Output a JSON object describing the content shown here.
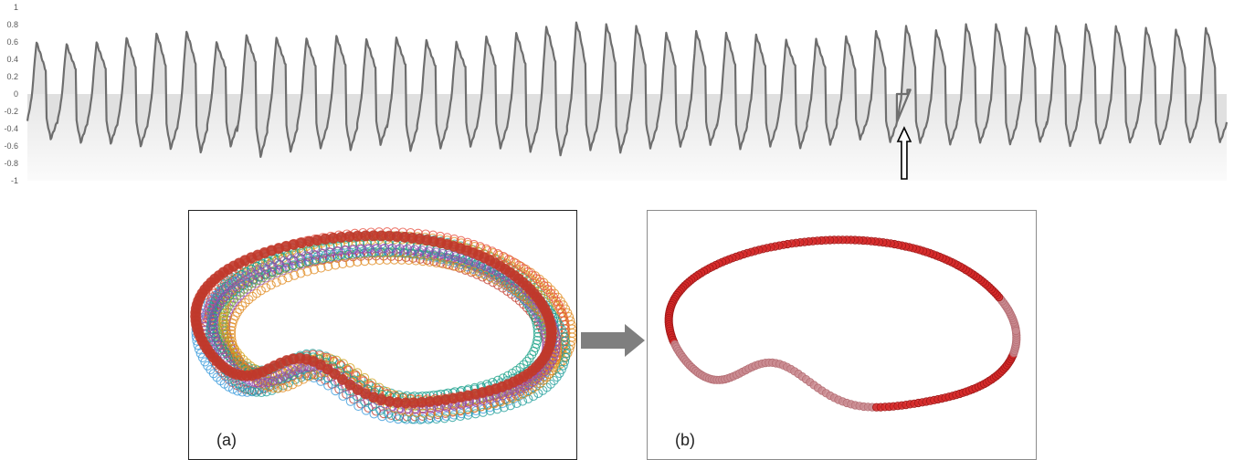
{
  "chart_data": [
    {
      "type": "line",
      "title": "",
      "xlabel": "",
      "ylabel": "",
      "ylim": [
        -1,
        1
      ],
      "yticks": [
        "1",
        "0.8",
        "0.6",
        "0.4",
        "0.2",
        "0",
        "-0.2",
        "-0.4",
        "-0.6",
        "-0.8",
        "-1"
      ],
      "grid": false,
      "fill_to_zero": true,
      "line_color": "#6e6e6e",
      "fill_color": "#e0e0e0",
      "cycles": [
        {
          "max": 0.6,
          "min": -0.52
        },
        {
          "max": 0.58,
          "min": -0.56
        },
        {
          "max": 0.6,
          "min": -0.57
        },
        {
          "max": 0.65,
          "min": -0.6
        },
        {
          "max": 0.7,
          "min": -0.63
        },
        {
          "max": 0.72,
          "min": -0.67
        },
        {
          "max": 0.6,
          "min": -0.6
        },
        {
          "max": 0.68,
          "min": -0.72
        },
        {
          "max": 0.65,
          "min": -0.66
        },
        {
          "max": 0.64,
          "min": -0.62
        },
        {
          "max": 0.67,
          "min": -0.64
        },
        {
          "max": 0.63,
          "min": -0.58
        },
        {
          "max": 0.65,
          "min": -0.65
        },
        {
          "max": 0.62,
          "min": -0.62
        },
        {
          "max": 0.6,
          "min": -0.6
        },
        {
          "max": 0.66,
          "min": -0.62
        },
        {
          "max": 0.7,
          "min": -0.66
        },
        {
          "max": 0.77,
          "min": -0.7
        },
        {
          "max": 0.82,
          "min": -0.64
        },
        {
          "max": 0.8,
          "min": -0.67
        },
        {
          "max": 0.78,
          "min": -0.62
        },
        {
          "max": 0.7,
          "min": -0.6
        },
        {
          "max": 0.72,
          "min": -0.58
        },
        {
          "max": 0.7,
          "min": -0.63
        },
        {
          "max": 0.68,
          "min": -0.6
        },
        {
          "max": 0.62,
          "min": -0.62
        },
        {
          "max": 0.63,
          "min": -0.58
        },
        {
          "max": 0.66,
          "min": -0.52
        },
        {
          "max": 0.72,
          "min": -0.55
        },
        {
          "max": 0.78,
          "min": -0.56
        },
        {
          "max": 0.73,
          "min": -0.58
        },
        {
          "max": 0.8,
          "min": -0.56
        },
        {
          "max": 0.8,
          "min": -0.58
        },
        {
          "max": 0.76,
          "min": -0.55
        },
        {
          "max": 0.78,
          "min": -0.6
        },
        {
          "max": 0.8,
          "min": -0.57
        },
        {
          "max": 0.78,
          "min": -0.56
        },
        {
          "max": 0.76,
          "min": -0.58
        },
        {
          "max": 0.74,
          "min": -0.56
        },
        {
          "max": 0.76,
          "min": -0.56
        }
      ],
      "gap": {
        "after_cycle": 28,
        "level": 0,
        "step_to": 0.05
      },
      "annotation": {
        "kind": "arrow-up",
        "points_to": "signal gap"
      }
    },
    {
      "type": "scatter",
      "panel": "a",
      "label": "(a)",
      "description_kind": "overlapping phase-space loops, many colored cycles",
      "series_colors": [
        "#1f9e9a",
        "#e08a1e",
        "#8e44ad",
        "#c0392b",
        "#3498db",
        "#7fb33d",
        "#d4a017",
        "#e74c3c",
        "#16a085",
        "#9b59b6"
      ]
    },
    {
      "type": "scatter",
      "panel": "b",
      "label": "(b)",
      "description_kind": "single averaged loop",
      "series_colors": [
        "#d62828",
        "#c98a8f"
      ]
    }
  ],
  "panels": {
    "a_label": "(a)",
    "b_label": "(b)"
  },
  "arrow_color": "#7f7f7f"
}
